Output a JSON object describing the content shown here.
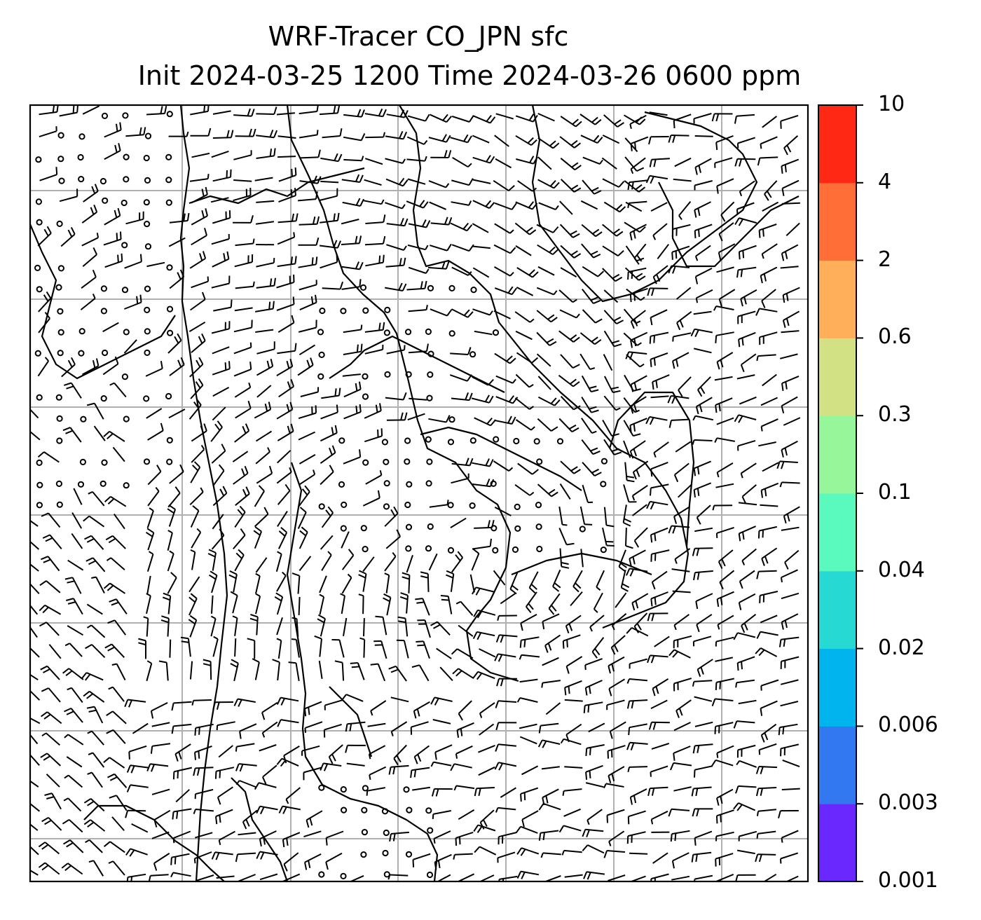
{
  "figure": {
    "title_line1": "WRF-Tracer CO_JPN sfc",
    "title_line2": "Init 2024-03-25 1200 Time 2024-03-26 0600 ppm"
  },
  "colorbar": {
    "levels": [
      "0.001",
      "0.003",
      "0.006",
      "0.02",
      "0.04",
      "0.1",
      "0.3",
      "0.6",
      "2",
      "4",
      "10"
    ],
    "colors": [
      "#6a28ff",
      "#3278f0",
      "#00b4ee",
      "#26d9d2",
      "#5afabe",
      "#96f79a",
      "#d2e183",
      "#ffaf5a",
      "#ff6e37",
      "#ff2814"
    ]
  },
  "map": {
    "gridline_color": "#b0b0b0",
    "field": "CO tracer concentration (no shading visible) with surface wind barbs",
    "gridlines": {
      "vertical_count": 6,
      "horizontal_count": 7
    }
  }
}
